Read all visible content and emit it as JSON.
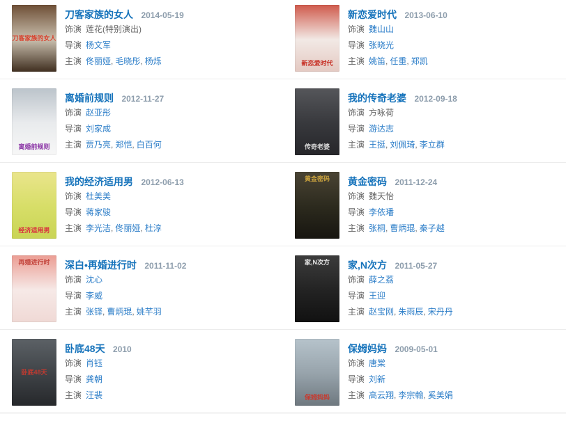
{
  "labels": {
    "plays": "饰演",
    "director": "导演",
    "starring": "主演"
  },
  "colors": {
    "background": "#ffffff",
    "title_link": "#1673bb",
    "name_link": "#2b7dc8",
    "date": "#8d9dac",
    "label": "#666666",
    "plain_name": "#666666",
    "comma": "#666666",
    "row_divider": "#ececec",
    "bottom_divider": "#d8d8d8"
  },
  "entries": [
    {
      "title": "刀客家族的女人",
      "date": "2014-05-19",
      "plays": [
        {
          "name": "莲花(特别演出)",
          "link": false
        }
      ],
      "directors": [
        {
          "name": "杨文军",
          "link": true
        }
      ],
      "starring": [
        {
          "name": "佟丽娅",
          "link": true
        },
        {
          "name": "毛晓彤",
          "link": true
        },
        {
          "name": "杨烁",
          "link": true
        }
      ],
      "poster": {
        "gradient": [
          "#6e4f36",
          "#c9bfae",
          "#402f20"
        ],
        "caption": "刀客家族的女人",
        "caption_color": "#d8412e",
        "caption_pos": "middle"
      }
    },
    {
      "title": "新恋爱时代",
      "date": "2013-06-10",
      "plays": [
        {
          "name": "魏山山",
          "link": true
        }
      ],
      "directors": [
        {
          "name": "张晓光",
          "link": true
        }
      ],
      "starring": [
        {
          "name": "姚笛",
          "link": true
        },
        {
          "name": "任重",
          "link": true
        },
        {
          "name": "郑凯",
          "link": true
        }
      ],
      "poster": {
        "gradient": [
          "#cf5a4c",
          "#f2e9e5",
          "#e4c9c2"
        ],
        "caption": "新恋爱时代",
        "caption_color": "#c62b20",
        "caption_pos": "bottom"
      }
    },
    {
      "title": "离婚前规则",
      "date": "2012-11-27",
      "plays": [
        {
          "name": "赵亚彤",
          "link": true
        }
      ],
      "directors": [
        {
          "name": "刘家成",
          "link": true
        }
      ],
      "starring": [
        {
          "name": "贾乃亮",
          "link": true
        },
        {
          "name": "郑恺",
          "link": true
        },
        {
          "name": "白百何",
          "link": true
        }
      ],
      "poster": {
        "gradient": [
          "#bcc4cb",
          "#e9ebed",
          "#f7f7f7"
        ],
        "caption": "离婚前规则",
        "caption_color": "#8b35a6",
        "caption_pos": "bottom"
      }
    },
    {
      "title": "我的传奇老婆",
      "date": "2012-09-18",
      "plays": [
        {
          "name": "方咏荷",
          "link": false
        }
      ],
      "directors": [
        {
          "name": "游达志",
          "link": true
        }
      ],
      "starring": [
        {
          "name": "王挺",
          "link": true
        },
        {
          "name": "刘佩琦",
          "link": true
        },
        {
          "name": "李立群",
          "link": true
        }
      ],
      "poster": {
        "gradient": [
          "#55565a",
          "#38393d",
          "#26262a"
        ],
        "caption": "传奇老婆",
        "caption_color": "#d9d9d9",
        "caption_pos": "bottom"
      }
    },
    {
      "title": "我的经济适用男",
      "date": "2012-06-13",
      "plays": [
        {
          "name": "杜美美",
          "link": true
        }
      ],
      "directors": [
        {
          "name": "蒋家骏",
          "link": true
        }
      ],
      "starring": [
        {
          "name": "李光洁",
          "link": true
        },
        {
          "name": "佟丽娅",
          "link": true
        },
        {
          "name": "杜淳",
          "link": true
        }
      ],
      "poster": {
        "gradient": [
          "#eae58c",
          "#d7de68",
          "#c9d455"
        ],
        "caption": "经济适用男",
        "caption_color": "#d9333f",
        "caption_pos": "bottom"
      }
    },
    {
      "title": "黄金密码",
      "date": "2011-12-24",
      "plays": [
        {
          "name": "魏天怡",
          "link": false
        }
      ],
      "directors": [
        {
          "name": "李依璠",
          "link": true
        }
      ],
      "starring": [
        {
          "name": "张桐",
          "link": true
        },
        {
          "name": "曹炳琨",
          "link": true
        },
        {
          "name": "秦子越",
          "link": true
        }
      ],
      "poster": {
        "gradient": [
          "#4a4434",
          "#2c2a1e",
          "#171510"
        ],
        "caption": "黄金密码",
        "caption_color": "#c9a23e",
        "caption_pos": "top"
      }
    },
    {
      "title": "深白•再婚进行时",
      "date": "2011-11-02",
      "plays": [
        {
          "name": "沈心",
          "link": true
        }
      ],
      "directors": [
        {
          "name": "李威",
          "link": true
        }
      ],
      "starring": [
        {
          "name": "张铎",
          "link": true
        },
        {
          "name": "曹炳琨",
          "link": true
        },
        {
          "name": "姚芊羽",
          "link": true
        }
      ],
      "poster": {
        "gradient": [
          "#eb9d93",
          "#f6e9e7",
          "#f0d9d5"
        ],
        "caption": "再婚进行时",
        "caption_color": "#c4473f",
        "caption_pos": "top"
      }
    },
    {
      "title": "家,N次方",
      "date": "2011-05-27",
      "plays": [
        {
          "name": "薛之荔",
          "link": true
        }
      ],
      "directors": [
        {
          "name": "王迎",
          "link": true
        }
      ],
      "starring": [
        {
          "name": "赵宝刚",
          "link": true
        },
        {
          "name": "朱雨辰",
          "link": true
        },
        {
          "name": "宋丹丹",
          "link": true
        }
      ],
      "poster": {
        "gradient": [
          "#3c3c3c",
          "#232323",
          "#111111"
        ],
        "caption": "家,N次方",
        "caption_color": "#e9e9e9",
        "caption_pos": "top"
      }
    },
    {
      "title": "卧底48天",
      "date": "2010",
      "plays": [
        {
          "name": "肖钰",
          "link": true
        }
      ],
      "directors": [
        {
          "name": "龚朝",
          "link": true
        }
      ],
      "starring": [
        {
          "name": "汪裴",
          "link": true
        }
      ],
      "poster": {
        "gradient": [
          "#5c6166",
          "#3f4347",
          "#26282b"
        ],
        "caption": "卧底48天",
        "caption_color": "#c23a30",
        "caption_pos": "middle"
      }
    },
    {
      "title": "保姆妈妈",
      "date": "2009-05-01",
      "plays": [
        {
          "name": "唐棠",
          "link": true
        }
      ],
      "directors": [
        {
          "name": "刘新",
          "link": true
        }
      ],
      "starring": [
        {
          "name": "高云翔",
          "link": true
        },
        {
          "name": "李宗翰",
          "link": true
        },
        {
          "name": "奚美娟",
          "link": true
        }
      ],
      "poster": {
        "gradient": [
          "#b6c3cb",
          "#97a3ab",
          "#6e787f"
        ],
        "caption": "保姆妈妈",
        "caption_color": "#c8392e",
        "caption_pos": "bottom"
      }
    }
  ]
}
